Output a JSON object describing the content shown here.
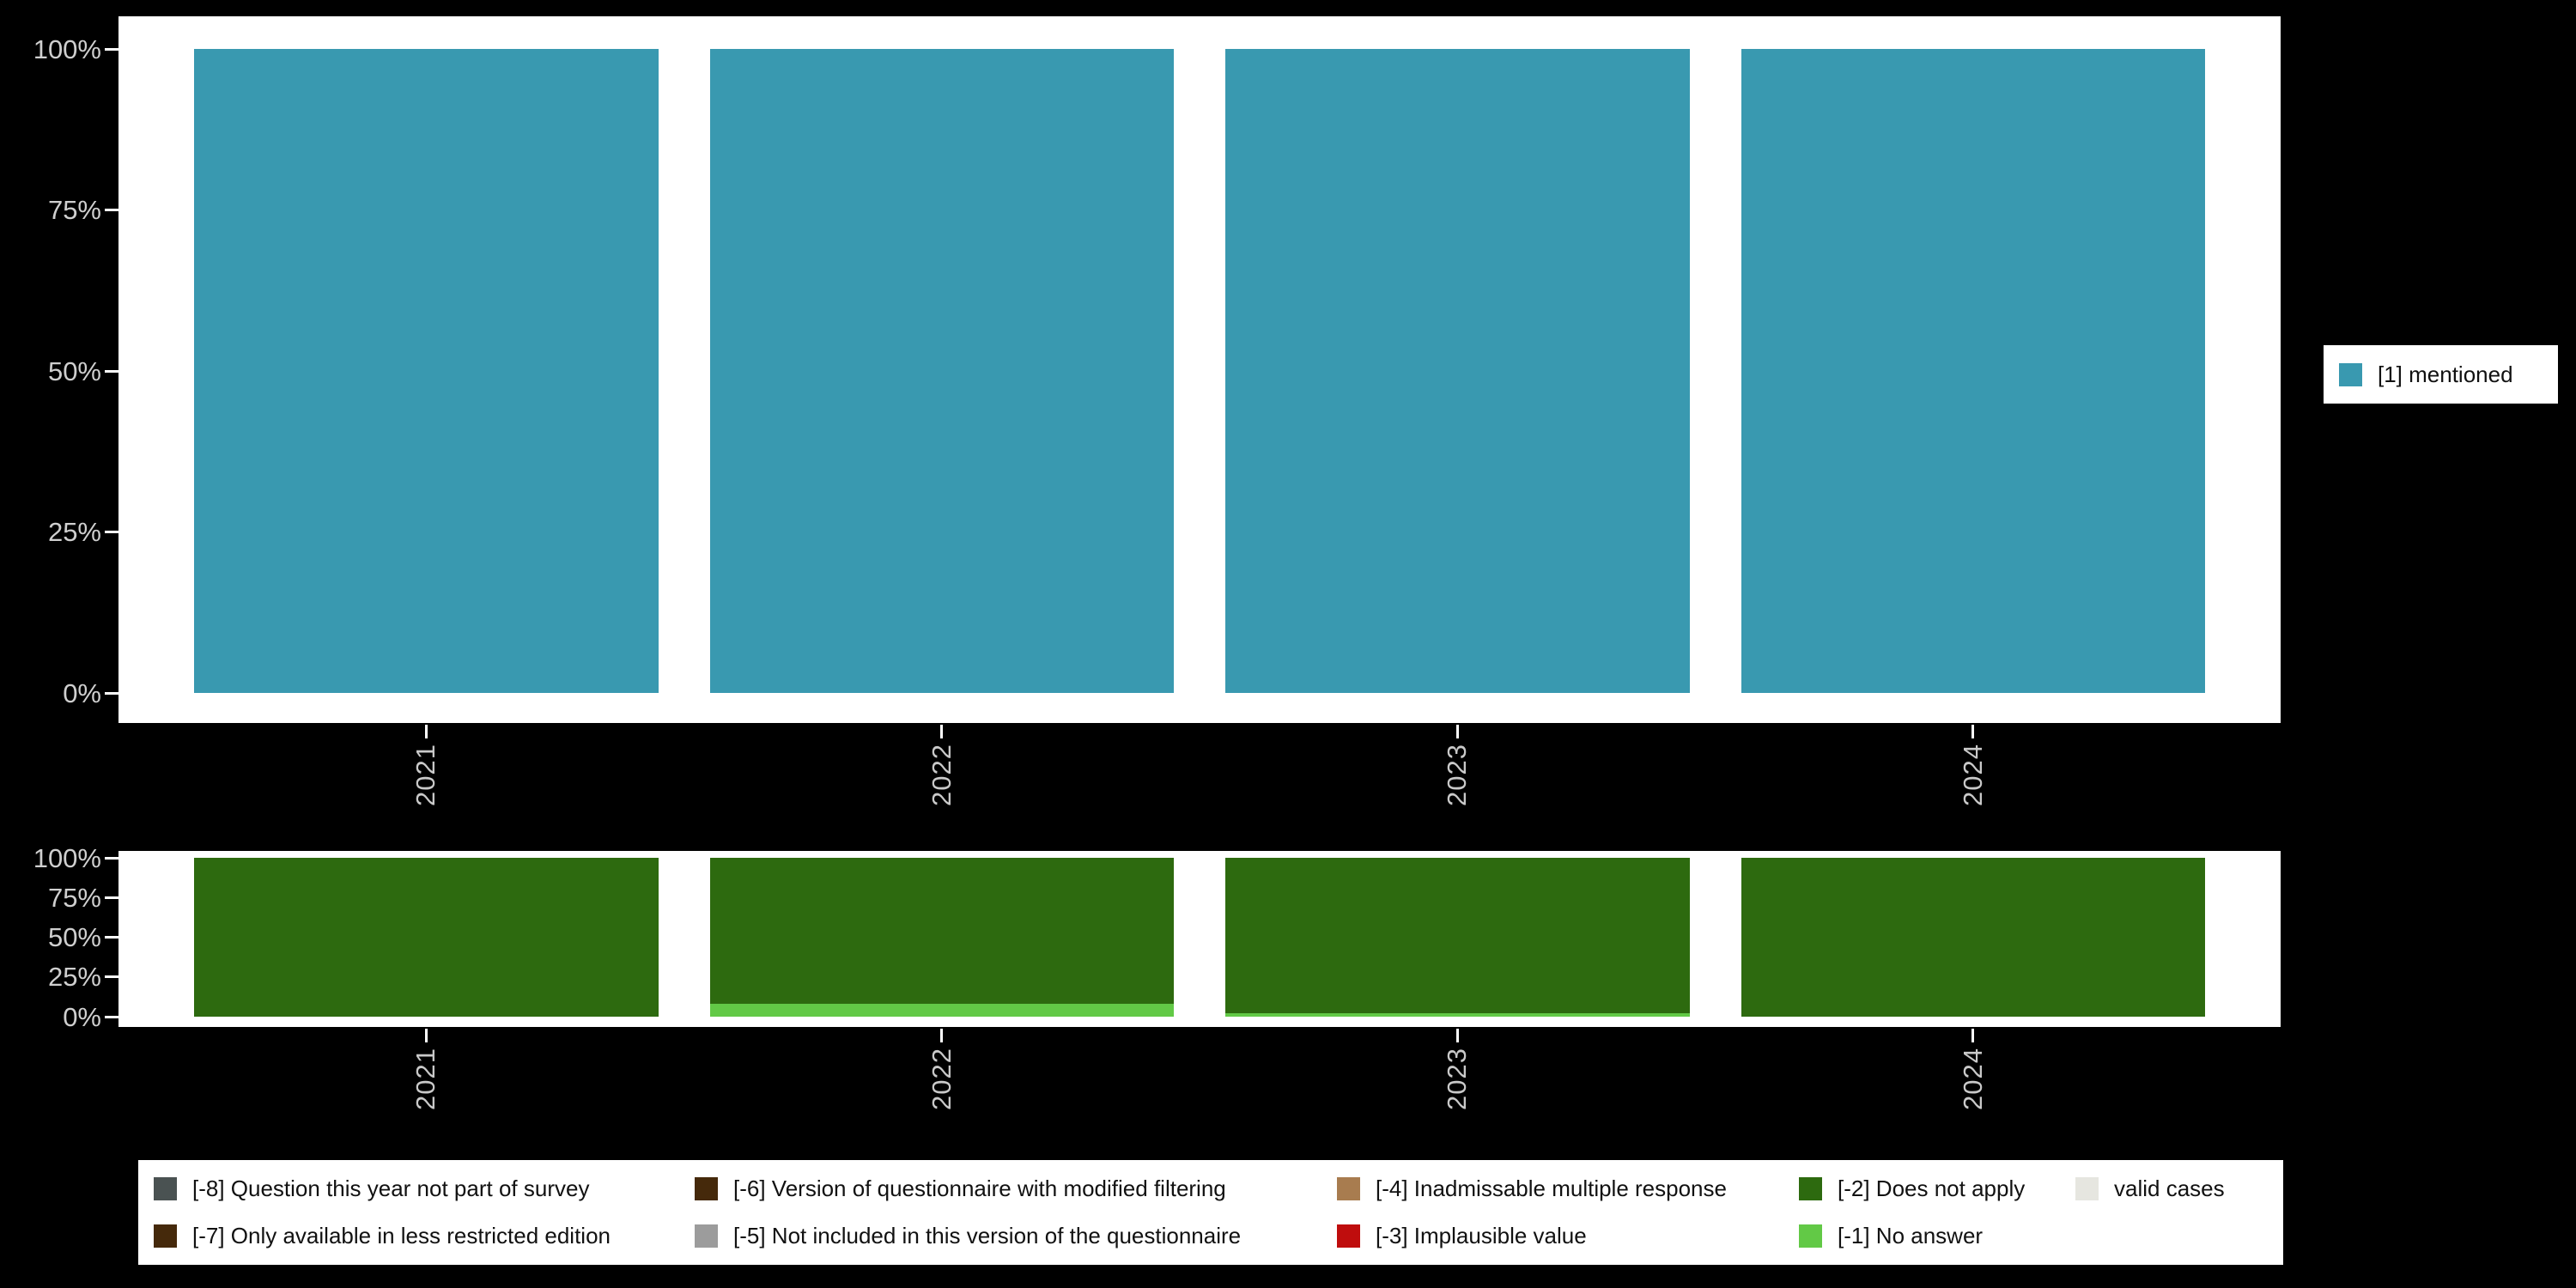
{
  "page": {
    "background": "#000000",
    "panel_background": "#ffffff",
    "axis_text_color": "#cfcfcf",
    "tick_color": "#ffffff",
    "legend_text_color": "#111111",
    "legend_background": "#ffffff"
  },
  "chart_data": [
    {
      "id": "valid",
      "type": "bar",
      "title": "",
      "categories": [
        "2021",
        "2022",
        "2023",
        "2024"
      ],
      "series": [
        {
          "name": "[1] mentioned",
          "color": "#3999b0",
          "values": [
            100,
            100,
            100,
            100
          ]
        }
      ],
      "xlabel": "",
      "ylabel": "",
      "ylim": [
        0,
        100
      ],
      "ytick_labels": [
        "0%",
        "25%",
        "50%",
        "75%",
        "100%"
      ],
      "grid": false,
      "legend_position": "right"
    },
    {
      "id": "missing",
      "type": "stacked-bar",
      "title": "",
      "categories": [
        "2021",
        "2022",
        "2023",
        "2024"
      ],
      "series": [
        {
          "name": "[-1] No answer",
          "color": "#62c946",
          "values": [
            0,
            8,
            2,
            0
          ]
        },
        {
          "name": "[-2] Does not apply",
          "color": "#2d6a0f",
          "values": [
            100,
            92,
            98,
            100
          ]
        }
      ],
      "xlabel": "",
      "ylabel": "",
      "ylim": [
        0,
        100
      ],
      "ytick_labels": [
        "0%",
        "25%",
        "50%",
        "75%",
        "100%"
      ],
      "grid": false,
      "legend_position": "bottom"
    }
  ],
  "right_legend": {
    "items": [
      {
        "label": "[1] mentioned",
        "color": "#3999b0"
      }
    ]
  },
  "bottom_legend": {
    "items": [
      {
        "label": "[-8] Question this year not part of survey",
        "color": "#4a5252"
      },
      {
        "label": "[-7] Only available in less restricted edition",
        "color": "#45290b"
      },
      {
        "label": "[-6] Version of questionnaire with modified filtering",
        "color": "#45290b"
      },
      {
        "label": "[-5] Not included in this version of the questionnaire",
        "color": "#9c9c9c"
      },
      {
        "label": "[-4] Inadmissable multiple response",
        "color": "#a87c4f"
      },
      {
        "label": "[-3] Implausible value",
        "color": "#bf0d0d"
      },
      {
        "label": "[-2] Does not apply",
        "color": "#2d6a0f"
      },
      {
        "label": "[-1] No answer",
        "color": "#62c946"
      },
      {
        "label": "valid cases",
        "color": "#e6e6e0"
      }
    ]
  }
}
